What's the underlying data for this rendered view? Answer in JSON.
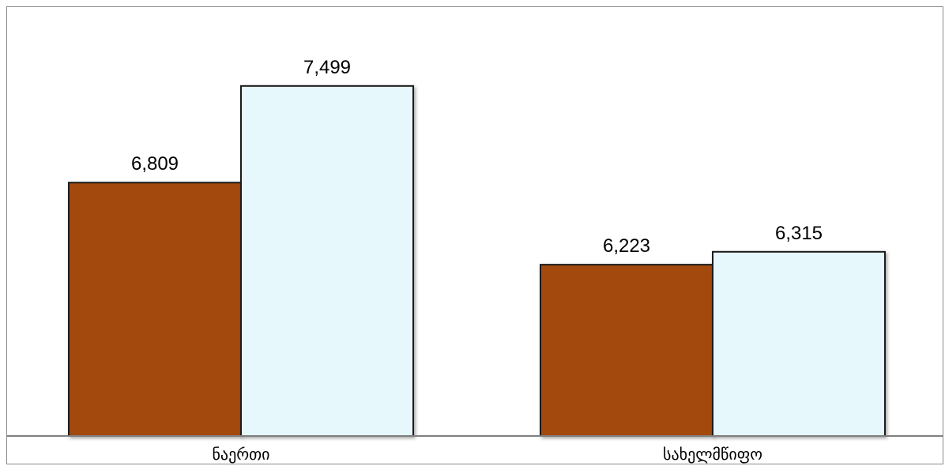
{
  "chart_data": {
    "type": "bar",
    "categories": [
      "ნაერთი",
      "სახელმწიფო"
    ],
    "series": [
      {
        "values": [
          6809,
          6223
        ],
        "labels": [
          "6,809",
          "6,223"
        ],
        "color": "#A34A0A"
      },
      {
        "values": [
          7499,
          6315
        ],
        "labels": [
          "7,499",
          "6,315"
        ],
        "color": "#E6F8FC"
      }
    ],
    "grid": false,
    "legend": false,
    "ylim": [
      5000,
      8000
    ],
    "bar_outline_color": "#1a1a1a",
    "axis_color": "#7f7f7f"
  }
}
